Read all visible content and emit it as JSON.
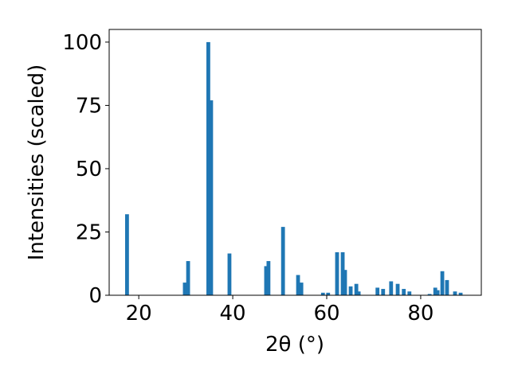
{
  "chart_data": {
    "type": "bar",
    "xlabel": "2θ (°)",
    "ylabel": "Intensities (scaled)",
    "x": [
      17.5,
      29.8,
      30.5,
      34.8,
      35.4,
      39.3,
      47.1,
      47.6,
      50.7,
      53.9,
      54.6,
      59.2,
      60.3,
      62.2,
      63.4,
      63.9,
      65.1,
      66.3,
      66.8,
      70.8,
      72.0,
      73.7,
      75.1,
      76.4,
      77.6,
      81.9,
      83.1,
      83.6,
      84.6,
      85.6,
      87.3,
      88.5
    ],
    "values": [
      32,
      5,
      13.5,
      100,
      77,
      16.5,
      11.5,
      13.5,
      27,
      8,
      5,
      1,
      1,
      17,
      17,
      10,
      3.5,
      4.5,
      1.5,
      3,
      2.5,
      5.5,
      4.5,
      2.5,
      1.5,
      0.5,
      3,
      2,
      9.5,
      6,
      1.5,
      1
    ],
    "color": "#1f77b4",
    "xlim": [
      13.7,
      92.9
    ],
    "xticks": [
      20,
      40,
      60,
      80
    ],
    "ylim": [
      0,
      105
    ],
    "yticks": [
      0,
      25,
      50,
      75,
      100
    ]
  }
}
